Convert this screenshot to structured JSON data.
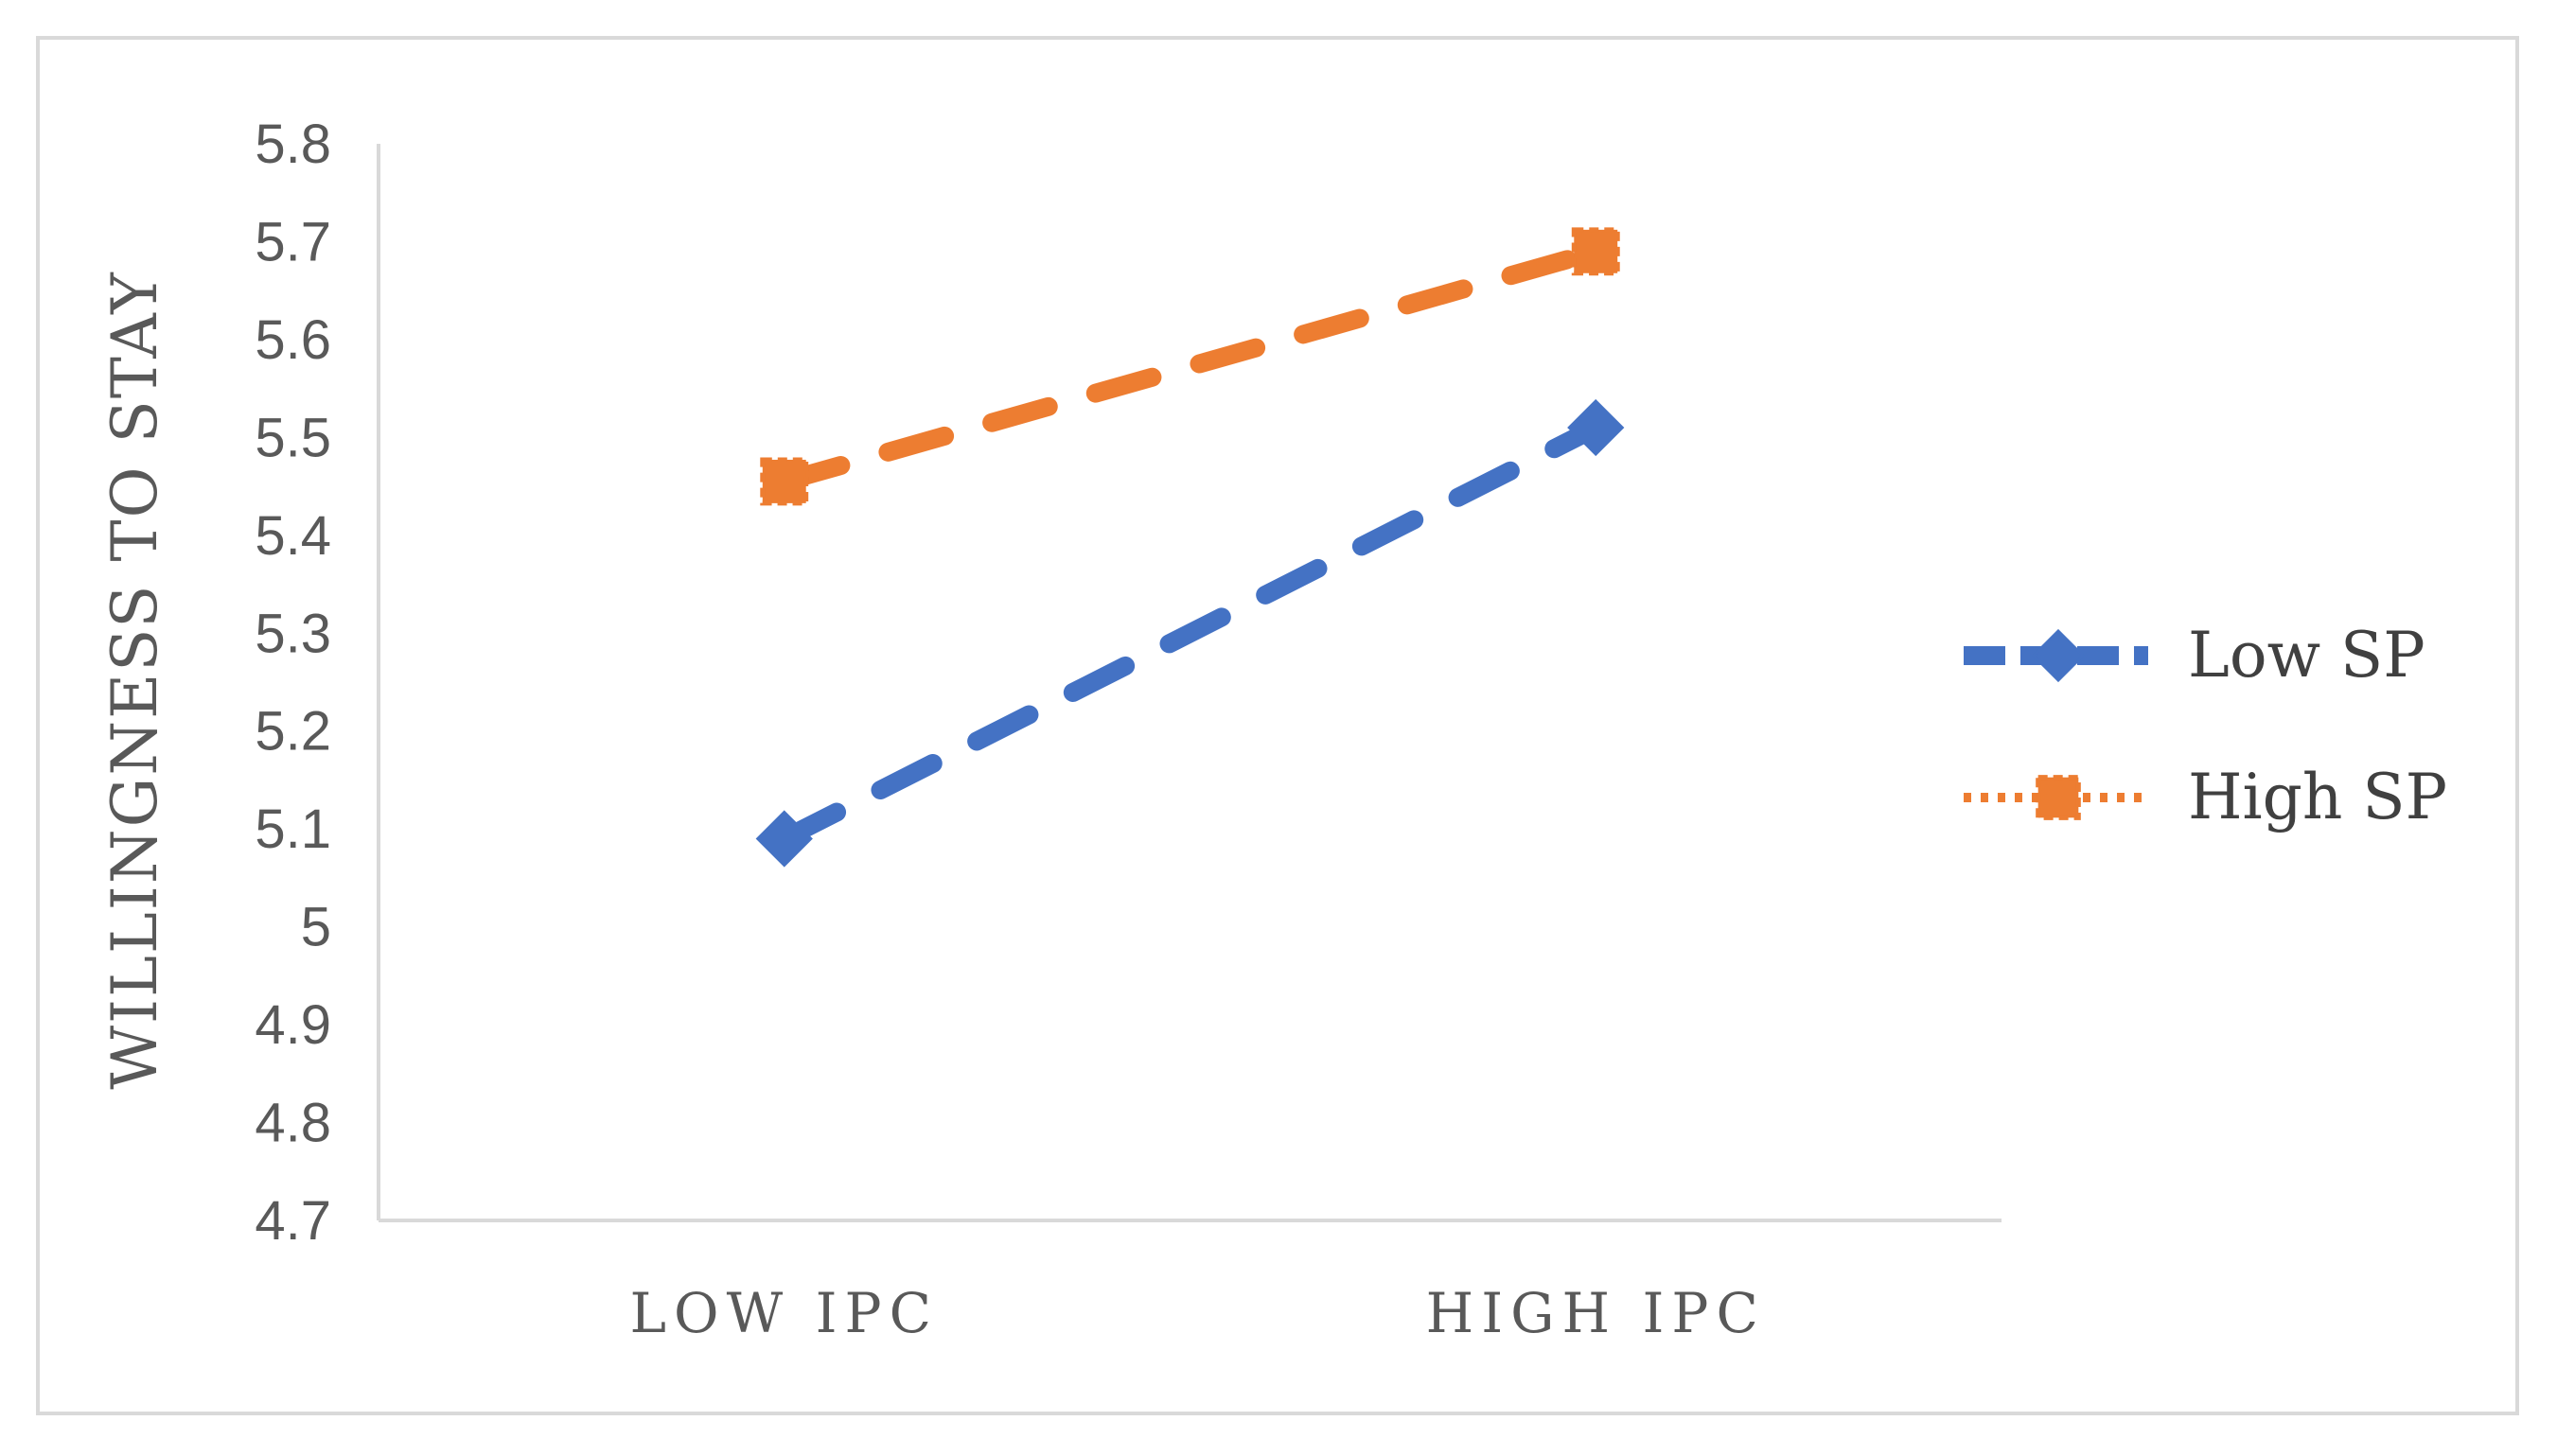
{
  "chart_data": {
    "type": "line",
    "title": "",
    "xlabel": "",
    "ylabel": "WILLINGNESS TO STAY",
    "categories": [
      "LOW IPC",
      "HIGH IPC"
    ],
    "ylim": [
      4.7,
      5.8
    ],
    "ytick_step": 0.1,
    "ytick_labels": [
      "4.7",
      "4.8",
      "4.9",
      "5",
      "5.1",
      "5.2",
      "5.3",
      "5.4",
      "5.5",
      "5.6",
      "5.7",
      "5.8"
    ],
    "grid": false,
    "legend_position": "right",
    "series": [
      {
        "name": "Low SP",
        "values": [
          5.09,
          5.51
        ],
        "color": "#4472c4",
        "marker": "diamond",
        "line_style": "dashed"
      },
      {
        "name": "High SP",
        "values": [
          5.455,
          5.69
        ],
        "color": "#ed7d31",
        "marker": "square",
        "line_style": "dashed"
      }
    ]
  }
}
